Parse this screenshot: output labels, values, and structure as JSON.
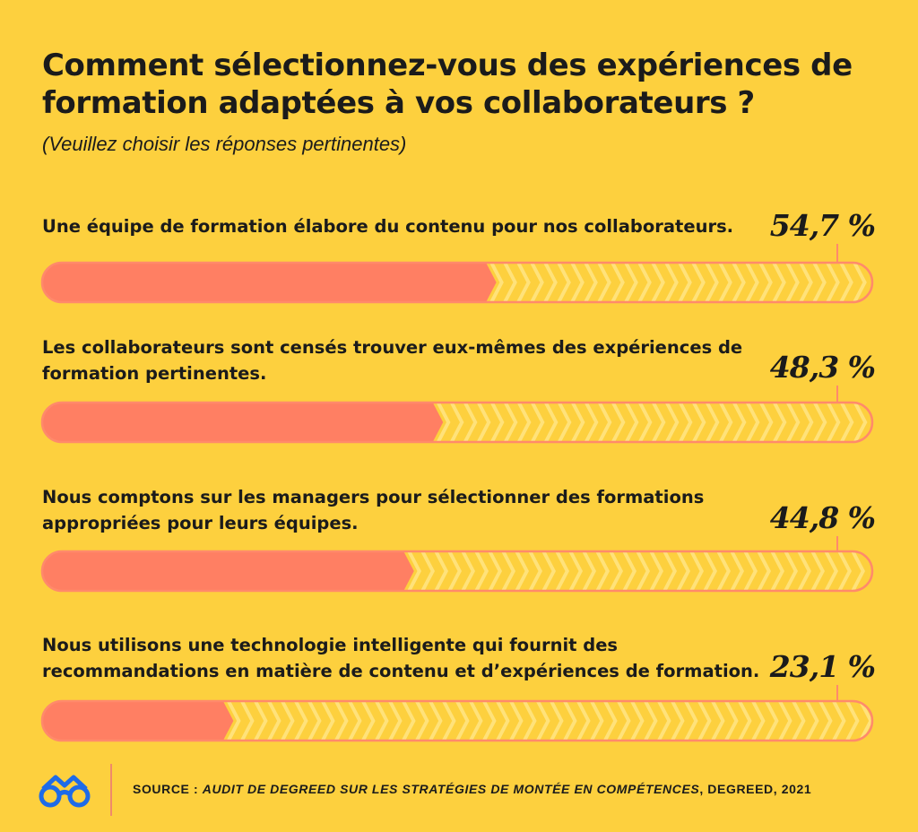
{
  "title": "Comment sélectionnez-vous des expériences de formation adaptées à vos collaborateurs ?",
  "subtitle": "(Veuillez choisir les réponses pertinentes)",
  "chart_data": {
    "type": "bar",
    "orientation": "horizontal",
    "unit": "%",
    "xlim": [
      0,
      100
    ],
    "categories": [
      "Une équipe de formation élabore du contenu pour nos collaborateurs.",
      "Les collaborateurs sont censés trouver eux-mêmes des expériences de formation pertinentes.",
      "Nous comptons sur les managers pour sélectionner des formations appropriées pour leurs équipes.",
      "Nous utilisons une technologie intelligente qui fournit des recommandations en matière de contenu et d’expériences de formation."
    ],
    "values": [
      54.7,
      48.3,
      44.8,
      23.1
    ],
    "value_labels": [
      "54,7 %",
      "48,3 %",
      "44,8 %",
      "23,1 %"
    ],
    "grid": false,
    "legend": "none"
  },
  "source": {
    "prefix": "SOURCE : ",
    "title": "AUDIT DE DEGREED SUR LES STRATÉGIES DE MONTÉE EN COMPÉTENCES",
    "suffix": ", DEGREED, 2021"
  },
  "colors": {
    "background": "#FDD03E",
    "bar_fill": "#FF7F63",
    "bar_outline": "#FF8A6B",
    "chevron": "#FFE27A",
    "text": "#1B1B1B"
  },
  "logo": {
    "icon": "glasses-logo-icon",
    "color": "#1E6BE8"
  }
}
